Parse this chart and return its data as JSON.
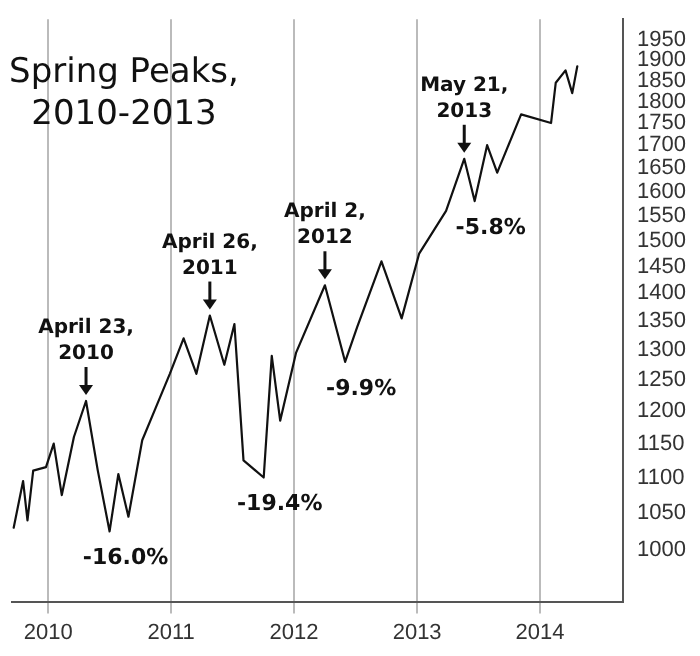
{
  "chart_data": {
    "type": "line",
    "title": "Spring Peaks, 2010-2013",
    "x": [
      "2009-09-20",
      "2009-10-18",
      "2009-10-31",
      "2009-11-17",
      "2009-12-25",
      "2010-01-17",
      "2010-02-10",
      "2010-03-18",
      "2010-04-23",
      "2010-05-28",
      "2010-07-02",
      "2010-07-28",
      "2010-08-27",
      "2010-10-07",
      "2010-11-16",
      "2010-12-28",
      "2011-02-07",
      "2011-03-17",
      "2011-04-26",
      "2011-06-08",
      "2011-07-08",
      "2011-08-04",
      "2011-10-03",
      "2011-10-27",
      "2011-11-21",
      "2012-01-07",
      "2012-04-02",
      "2012-06-01",
      "2012-07-07",
      "2012-09-17",
      "2012-11-16",
      "2013-01-07",
      "2013-03-28",
      "2013-05-21",
      "2013-06-21",
      "2013-07-28",
      "2013-08-27",
      "2013-11-06",
      "2014-02-03",
      "2014-02-17",
      "2014-03-18",
      "2014-04-07",
      "2014-04-22"
    ],
    "series": [
      {
        "color": "#111111",
        "values": [
          1030,
          1095,
          1040,
          1110,
          1115,
          1150,
          1075,
          1160,
          1216,
          1110,
          1025,
          1105,
          1045,
          1155,
          1205,
          1260,
          1320,
          1260,
          1360,
          1275,
          1345,
          1125,
          1100,
          1290,
          1185,
          1295,
          1415,
          1280,
          1340,
          1460,
          1355,
          1475,
          1560,
          1670,
          1580,
          1700,
          1640,
          1770,
          1750,
          1845,
          1875,
          1820,
          1885
        ]
      }
    ],
    "annotations": [
      {
        "text": "April 23,\n2010",
        "x": "2010-04-23",
        "y": 1216
      },
      {
        "text": "-16.0%",
        "x": "2010-07-02",
        "y": 1025
      },
      {
        "text": "April 26,\n2011",
        "x": "2011-04-26",
        "y": 1360
      },
      {
        "text": "-19.4%",
        "x": "2011-10-03",
        "y": 1100
      },
      {
        "text": "April 2,\n2012",
        "x": "2012-04-02",
        "y": 1415
      },
      {
        "text": "-9.9%",
        "x": "2012-06-01",
        "y": 1280
      },
      {
        "text": "May 21,\n2013",
        "x": "2013-05-21",
        "y": 1670
      },
      {
        "text": "-5.8%",
        "x": "2013-06-21",
        "y": 1580
      }
    ],
    "xlim": [
      "2009-09-15",
      "2014-09-05"
    ],
    "xticks": [
      "2010",
      "2011",
      "2012",
      "2013",
      "2014"
    ],
    "ylim": [
      935,
      2005
    ],
    "yticks": [
      1000,
      1050,
      1100,
      1150,
      1200,
      1250,
      1300,
      1350,
      1400,
      1450,
      1500,
      1550,
      1600,
      1650,
      1700,
      1750,
      1800,
      1850,
      1900,
      1950
    ],
    "log": "y",
    "grid": "x",
    "legend": false,
    "marker": "none",
    "line_style": "solid"
  }
}
